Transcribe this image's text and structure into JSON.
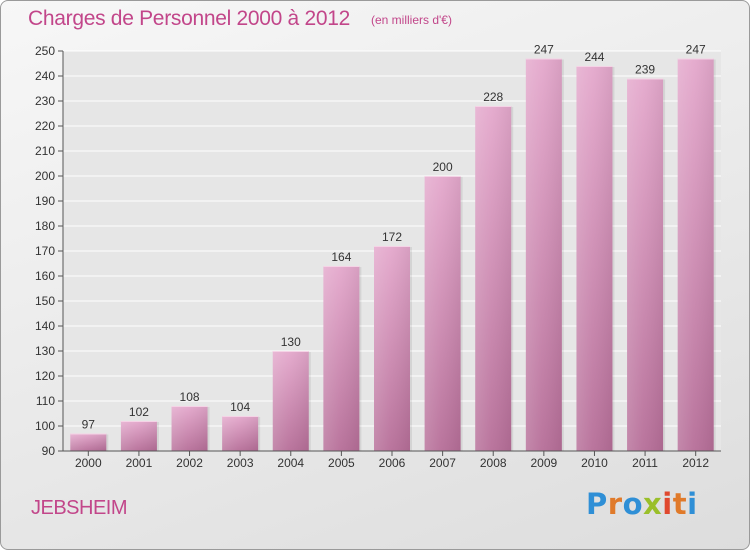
{
  "title": "Charges de Personnel 2000 à 2012",
  "subtitle": "(en milliers d'€)",
  "commune": "JEBSHEIM",
  "logo_text": "Proxiti",
  "colors": {
    "title": "#c2468a",
    "bar_light": "#e4a8cc",
    "bar_dark": "#b66e98",
    "grid": "#ffffff",
    "plot_bg": "#e6e6e6"
  },
  "chart_data": {
    "type": "bar",
    "title": "Charges de Personnel 2000 à 2012",
    "subtitle": "(en milliers d'€)",
    "categories": [
      "2000",
      "2001",
      "2002",
      "2003",
      "2004",
      "2005",
      "2006",
      "2007",
      "2008",
      "2009",
      "2010",
      "2011",
      "2012"
    ],
    "values": [
      97,
      102,
      108,
      104,
      130,
      164,
      172,
      200,
      228,
      247,
      244,
      239,
      247
    ],
    "ylim": [
      90,
      250
    ],
    "yticks": [
      90,
      100,
      110,
      120,
      130,
      140,
      150,
      160,
      170,
      180,
      190,
      200,
      210,
      220,
      230,
      240,
      250
    ],
    "grid": true,
    "legend": "none"
  }
}
